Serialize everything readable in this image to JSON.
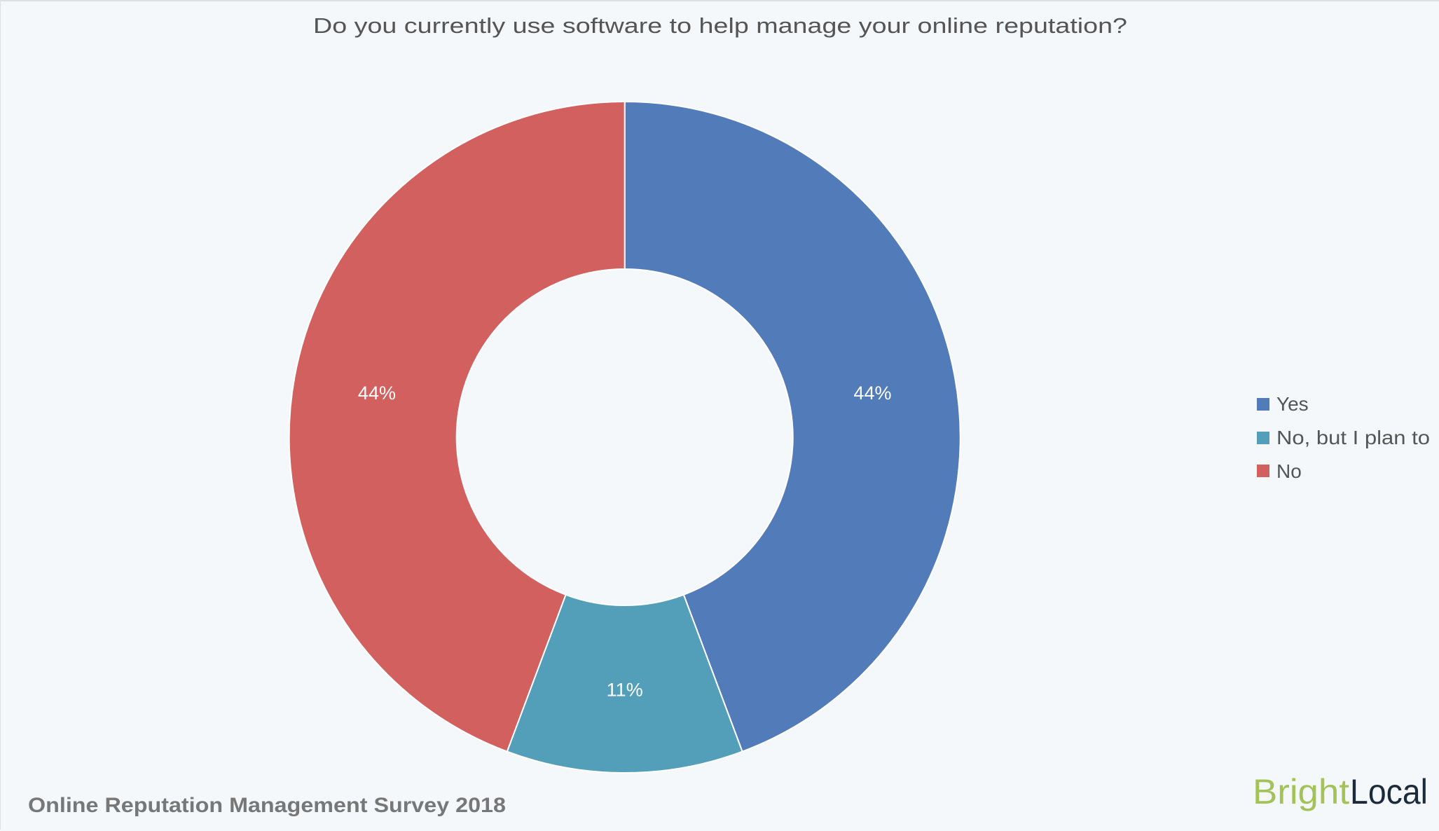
{
  "page": {
    "background": "#f4f8fb",
    "footer_text": "Online Reputation Management Survey 2018",
    "logo": {
      "part1": "Bright",
      "part2": "Local",
      "part1_color": "#a3c257",
      "part2_color": "#1c2b3c"
    }
  },
  "chart_data": {
    "type": "pie",
    "variant": "donut",
    "title": "Do you currently use software to help manage your online reputation?",
    "categories": [
      "Yes",
      "No, but I plan to",
      "No"
    ],
    "values": [
      44.3,
      11.4,
      44.3
    ],
    "labels": [
      "44%",
      "11%",
      "44%"
    ],
    "colors": [
      "#527bba",
      "#539fb9",
      "#d2605e"
    ],
    "start_angle_deg": 0,
    "direction": "clockwise",
    "inner_radius_ratio": 0.5,
    "legend_position": "right",
    "xlabel": "",
    "ylabel": ""
  },
  "legend": {
    "items": [
      {
        "label": "Yes",
        "color": "#527bba"
      },
      {
        "label": "No, but I plan to",
        "color": "#539fb9"
      },
      {
        "label": "No",
        "color": "#d2605e"
      }
    ]
  }
}
